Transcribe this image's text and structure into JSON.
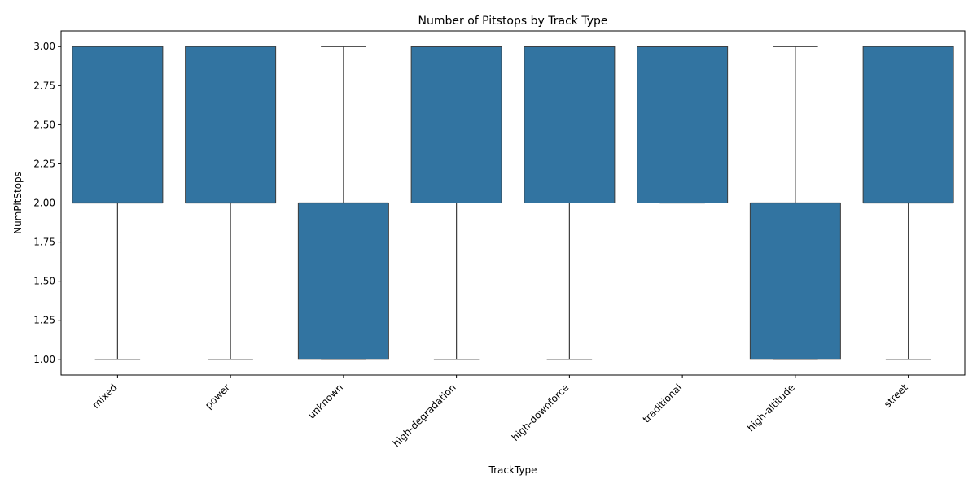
{
  "chart_data": {
    "type": "box",
    "title": "Number of Pitstops by Track Type",
    "xlabel": "TrackType",
    "ylabel": "NumPitStops",
    "ylim": [
      0.9,
      3.1
    ],
    "yticks": [
      1.0,
      1.25,
      1.5,
      1.75,
      2.0,
      2.25,
      2.5,
      2.75,
      3.0
    ],
    "ytick_labels": [
      "1.00",
      "1.25",
      "1.50",
      "1.75",
      "2.00",
      "2.25",
      "2.50",
      "2.75",
      "3.00"
    ],
    "box_color": "#3274a1",
    "line_color": "#3d3d3d",
    "categories": [
      "mixed",
      "power",
      "unknown",
      "high-degradation",
      "high-downforce",
      "traditional",
      "high-altitude",
      "street"
    ],
    "boxes": [
      {
        "category": "mixed",
        "whislo": 1,
        "q1": 2,
        "med": 2,
        "q3": 3,
        "whishi": 3
      },
      {
        "category": "power",
        "whislo": 1,
        "q1": 2,
        "med": 2,
        "q3": 3,
        "whishi": 3
      },
      {
        "category": "unknown",
        "whislo": 1,
        "q1": 1,
        "med": 2,
        "q3": 2,
        "whishi": 3
      },
      {
        "category": "high-degradation",
        "whislo": 1,
        "q1": 2,
        "med": 3,
        "q3": 3,
        "whishi": 3
      },
      {
        "category": "high-downforce",
        "whislo": 1,
        "q1": 2,
        "med": 3,
        "q3": 3,
        "whishi": 3
      },
      {
        "category": "traditional",
        "whislo": 2,
        "q1": 2,
        "med": 3,
        "q3": 3,
        "whishi": 3
      },
      {
        "category": "high-altitude",
        "whislo": 1,
        "q1": 1,
        "med": 2,
        "q3": 2,
        "whishi": 3
      },
      {
        "category": "street",
        "whislo": 1,
        "q1": 2,
        "med": 2,
        "q3": 3,
        "whishi": 3
      }
    ]
  }
}
